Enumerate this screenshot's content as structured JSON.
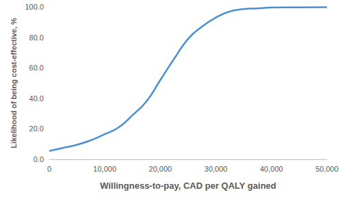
{
  "chart_data": {
    "type": "line",
    "x_label": "Willingness-to-pay, CAD per QALY gained",
    "y_label": "Likelihood of being cost-effective, %",
    "x": [
      0,
      2500,
      5000,
      7500,
      10000,
      12500,
      15000,
      17500,
      20000,
      22500,
      25000,
      27500,
      30000,
      32500,
      35000,
      37500,
      40000,
      45000,
      50000
    ],
    "values": [
      5.5,
      7.5,
      9.5,
      12.5,
      16.5,
      21,
      29,
      38,
      52,
      66,
      79,
      87,
      93,
      97,
      98.5,
      99,
      99.5,
      99.7,
      99.8
    ],
    "color": "#4a8fd4",
    "xlim": [
      0,
      50000
    ],
    "xticks": [
      0,
      {
        "value": 10000,
        "label": "10,000"
      },
      {
        "value": 20000,
        "label": "20,000"
      },
      {
        "value": 30000,
        "label": "30,000"
      },
      {
        "value": 40000,
        "label": "40,000"
      },
      {
        "value": 50000,
        "label": "50,000"
      }
    ],
    "ylim": [
      0,
      100
    ],
    "yticks": [
      {
        "value": 0,
        "label": "0.0"
      },
      {
        "value": 20,
        "label": "20.0"
      },
      {
        "value": 40,
        "label": "40.0"
      },
      {
        "value": 60,
        "label": "60.0"
      },
      {
        "value": 80,
        "label": "80.0"
      },
      {
        "value": 100,
        "label": "100.0"
      }
    ],
    "grid": false
  }
}
